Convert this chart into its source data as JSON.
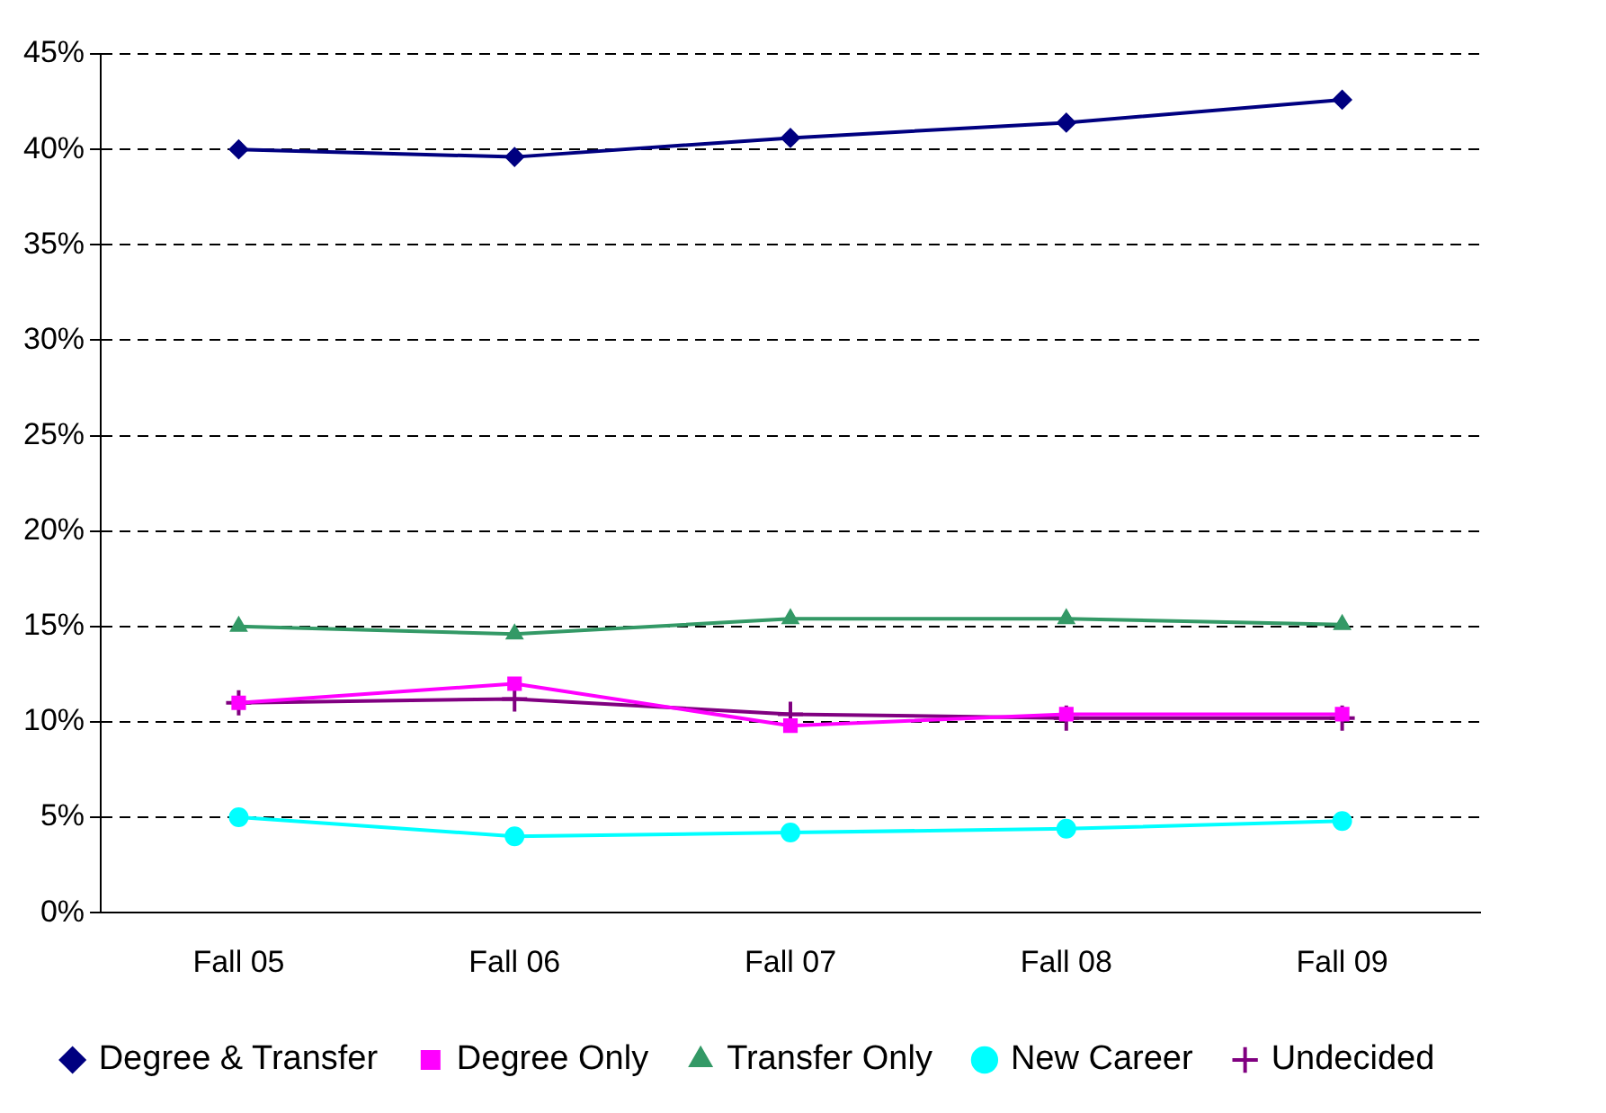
{
  "chart_data": {
    "type": "line",
    "categories": [
      "Fall 05",
      "Fall 06",
      "Fall 07",
      "Fall 08",
      "Fall 09"
    ],
    "series": [
      {
        "name": "Degree & Transfer",
        "color": "#000080",
        "marker": "diamond",
        "values": [
          40.0,
          39.6,
          40.6,
          41.4,
          42.6
        ]
      },
      {
        "name": "Degree Only",
        "color": "#ff00ff",
        "marker": "square",
        "values": [
          11.0,
          12.0,
          9.8,
          10.4,
          10.4
        ]
      },
      {
        "name": "Transfer Only",
        "color": "#339966",
        "marker": "triangle",
        "values": [
          15.0,
          14.6,
          15.4,
          15.4,
          15.1
        ]
      },
      {
        "name": "New Career",
        "color": "#00ffff",
        "marker": "circle",
        "values": [
          5.0,
          4.0,
          4.2,
          4.4,
          4.8
        ]
      },
      {
        "name": "Undecided",
        "color": "#800080",
        "marker": "cross",
        "values": [
          11.0,
          11.2,
          10.4,
          10.2,
          10.2
        ]
      }
    ],
    "ylim": [
      0,
      45
    ],
    "yticks": [
      {
        "value": 0,
        "label": "0%"
      },
      {
        "value": 5,
        "label": "5%"
      },
      {
        "value": 10,
        "label": "10%"
      },
      {
        "value": 15,
        "label": "15%"
      },
      {
        "value": 20,
        "label": "20%"
      },
      {
        "value": 25,
        "label": "25%"
      },
      {
        "value": 30,
        "label": "30%"
      },
      {
        "value": 35,
        "label": "35%"
      },
      {
        "value": 40,
        "label": "40%"
      },
      {
        "value": 45,
        "label": "45%"
      }
    ],
    "grid": "y",
    "legend": "bottom",
    "line_style": "solid"
  }
}
